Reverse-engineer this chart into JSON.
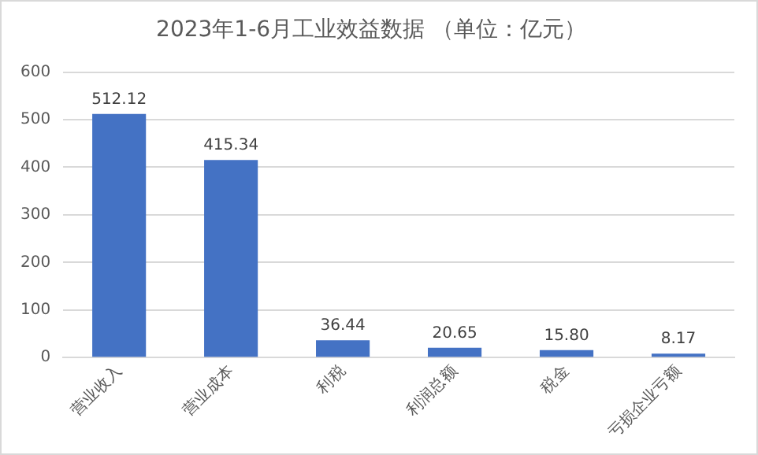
{
  "chart_data": {
    "type": "bar",
    "title": "2023年1-6月工业效益数据 （单位：亿元）",
    "categories": [
      "营业收入",
      "营业成本",
      "利税",
      "利润总额",
      "税金",
      "亏损企业亏额"
    ],
    "values": [
      512.12,
      415.34,
      36.44,
      20.65,
      15.8,
      8.17
    ],
    "value_labels": [
      "512.12",
      "415.34",
      "36.44",
      "20.65",
      "15.80",
      "8.17"
    ],
    "color": "#4472c4",
    "ylim": [
      0,
      600
    ],
    "yticks": [
      0,
      100,
      200,
      300,
      400,
      500,
      600
    ],
    "grid": "y",
    "legend": false
  }
}
